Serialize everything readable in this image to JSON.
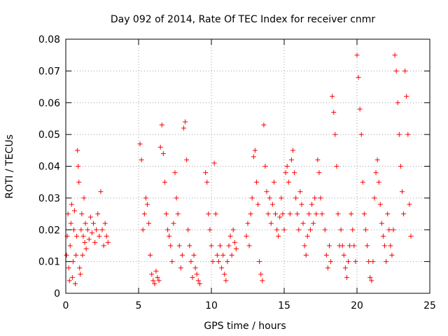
{
  "chart_data": {
    "type": "scatter",
    "title": "Day 092 of 2014, Rate Of TEC Index for receiver cnmr",
    "xlabel": "GPS time / hours",
    "ylabel": "ROTI / TECUs",
    "xlim": [
      0,
      25
    ],
    "ylim": [
      0,
      0.08
    ],
    "xticks": [
      0,
      5,
      10,
      15,
      20,
      25
    ],
    "yticks": [
      0,
      0.01,
      0.02,
      0.03,
      0.04,
      0.05,
      0.06,
      0.07,
      0.08
    ],
    "xtick_labels": [
      "0",
      "5",
      "10",
      "15",
      "20",
      "25"
    ],
    "ytick_labels": [
      "0",
      "0.01",
      "0.02",
      "0.03",
      "0.04",
      "0.05",
      "0.06",
      "0.07",
      "0.08"
    ],
    "grid": true,
    "marker": "+",
    "color": "#ff0000",
    "series": [
      {
        "name": "ROTI",
        "points": [
          [
            0.05,
            0.012
          ],
          [
            0.1,
            0.018
          ],
          [
            0.15,
            0.025
          ],
          [
            0.2,
            0.008
          ],
          [
            0.25,
            0.004
          ],
          [
            0.3,
            0.015
          ],
          [
            0.35,
            0.022
          ],
          [
            0.4,
            0.028
          ],
          [
            0.45,
            0.005
          ],
          [
            0.5,
            0.01
          ],
          [
            0.55,
            0.02
          ],
          [
            0.6,
            0.026
          ],
          [
            0.65,
            0.003
          ],
          [
            0.7,
            0.012
          ],
          [
            0.75,
            0.018
          ],
          [
            0.8,
            0.045
          ],
          [
            0.85,
            0.04
          ],
          [
            0.9,
            0.035
          ],
          [
            0.95,
            0.008
          ],
          [
            1.0,
            0.006
          ],
          [
            1.05,
            0.02
          ],
          [
            1.1,
            0.025
          ],
          [
            1.15,
            0.012
          ],
          [
            1.2,
            0.018
          ],
          [
            1.25,
            0.03
          ],
          [
            1.3,
            0.016
          ],
          [
            1.35,
            0.022
          ],
          [
            1.4,
            0.014
          ],
          [
            1.5,
            0.02
          ],
          [
            1.6,
            0.017
          ],
          [
            1.7,
            0.024
          ],
          [
            1.8,
            0.019
          ],
          [
            1.9,
            0.022
          ],
          [
            2.0,
            0.016
          ],
          [
            2.1,
            0.02
          ],
          [
            2.2,
            0.025
          ],
          [
            2.3,
            0.018
          ],
          [
            2.4,
            0.032
          ],
          [
            2.5,
            0.02
          ],
          [
            2.6,
            0.015
          ],
          [
            2.7,
            0.022
          ],
          [
            2.8,
            0.018
          ],
          [
            2.9,
            0.016
          ],
          [
            5.1,
            0.047
          ],
          [
            5.2,
            0.042
          ],
          [
            5.3,
            0.02
          ],
          [
            5.4,
            0.025
          ],
          [
            5.5,
            0.03
          ],
          [
            5.6,
            0.028
          ],
          [
            5.7,
            0.022
          ],
          [
            5.8,
            0.012
          ],
          [
            5.9,
            0.006
          ],
          [
            6.0,
            0.004
          ],
          [
            6.1,
            0.003
          ],
          [
            6.2,
            0.007
          ],
          [
            6.3,
            0.005
          ],
          [
            6.4,
            0.004
          ],
          [
            6.5,
            0.046
          ],
          [
            6.6,
            0.053
          ],
          [
            6.7,
            0.044
          ],
          [
            6.8,
            0.035
          ],
          [
            6.9,
            0.025
          ],
          [
            7.0,
            0.02
          ],
          [
            7.1,
            0.018
          ],
          [
            7.2,
            0.015
          ],
          [
            7.3,
            0.01
          ],
          [
            7.4,
            0.022
          ],
          [
            7.5,
            0.038
          ],
          [
            7.6,
            0.03
          ],
          [
            7.7,
            0.025
          ],
          [
            7.8,
            0.015
          ],
          [
            7.9,
            0.008
          ],
          [
            8.0,
            0.012
          ],
          [
            8.1,
            0.052
          ],
          [
            8.2,
            0.054
          ],
          [
            8.3,
            0.042
          ],
          [
            8.4,
            0.02
          ],
          [
            8.5,
            0.015
          ],
          [
            8.6,
            0.01
          ],
          [
            8.7,
            0.005
          ],
          [
            8.8,
            0.012
          ],
          [
            8.9,
            0.008
          ],
          [
            9.0,
            0.006
          ],
          [
            9.1,
            0.004
          ],
          [
            9.2,
            0.003
          ],
          [
            9.6,
            0.038
          ],
          [
            9.7,
            0.035
          ],
          [
            9.8,
            0.025
          ],
          [
            9.9,
            0.02
          ],
          [
            10.0,
            0.015
          ],
          [
            10.1,
            0.01
          ],
          [
            10.2,
            0.041
          ],
          [
            10.3,
            0.025
          ],
          [
            10.4,
            0.012
          ],
          [
            10.5,
            0.01
          ],
          [
            10.6,
            0.015
          ],
          [
            10.7,
            0.008
          ],
          [
            10.8,
            0.012
          ],
          [
            10.9,
            0.006
          ],
          [
            11.0,
            0.004
          ],
          [
            11.1,
            0.01
          ],
          [
            11.2,
            0.015
          ],
          [
            11.3,
            0.018
          ],
          [
            11.4,
            0.012
          ],
          [
            11.5,
            0.02
          ],
          [
            11.6,
            0.016
          ],
          [
            11.7,
            0.014
          ],
          [
            12.4,
            0.018
          ],
          [
            12.5,
            0.022
          ],
          [
            12.6,
            0.015
          ],
          [
            12.7,
            0.025
          ],
          [
            12.8,
            0.03
          ],
          [
            12.9,
            0.043
          ],
          [
            13.0,
            0.045
          ],
          [
            13.1,
            0.035
          ],
          [
            13.2,
            0.028
          ],
          [
            13.3,
            0.01
          ],
          [
            13.4,
            0.006
          ],
          [
            13.5,
            0.004
          ],
          [
            13.6,
            0.053
          ],
          [
            13.7,
            0.04
          ],
          [
            13.8,
            0.032
          ],
          [
            13.9,
            0.025
          ],
          [
            14.0,
            0.03
          ],
          [
            14.1,
            0.022
          ],
          [
            14.2,
            0.028
          ],
          [
            14.3,
            0.035
          ],
          [
            14.4,
            0.025
          ],
          [
            14.5,
            0.02
          ],
          [
            14.6,
            0.018
          ],
          [
            14.7,
            0.024
          ],
          [
            14.8,
            0.03
          ],
          [
            14.9,
            0.025
          ],
          [
            15.0,
            0.02
          ],
          [
            15.1,
            0.038
          ],
          [
            15.2,
            0.04
          ],
          [
            15.3,
            0.035
          ],
          [
            15.4,
            0.025
          ],
          [
            15.5,
            0.042
          ],
          [
            15.6,
            0.045
          ],
          [
            15.7,
            0.038
          ],
          [
            15.8,
            0.03
          ],
          [
            15.9,
            0.025
          ],
          [
            16.0,
            0.02
          ],
          [
            16.1,
            0.032
          ],
          [
            16.2,
            0.028
          ],
          [
            16.3,
            0.022
          ],
          [
            16.4,
            0.015
          ],
          [
            16.5,
            0.012
          ],
          [
            16.6,
            0.018
          ],
          [
            16.7,
            0.025
          ],
          [
            16.8,
            0.02
          ],
          [
            16.9,
            0.028
          ],
          [
            17.0,
            0.022
          ],
          [
            17.1,
            0.03
          ],
          [
            17.2,
            0.025
          ],
          [
            17.3,
            0.042
          ],
          [
            17.4,
            0.038
          ],
          [
            17.5,
            0.03
          ],
          [
            17.6,
            0.025
          ],
          [
            17.8,
            0.02
          ],
          [
            17.9,
            0.012
          ],
          [
            18.0,
            0.008
          ],
          [
            18.1,
            0.015
          ],
          [
            18.2,
            0.01
          ],
          [
            18.3,
            0.062
          ],
          [
            18.4,
            0.057
          ],
          [
            18.5,
            0.05
          ],
          [
            18.6,
            0.04
          ],
          [
            18.7,
            0.025
          ],
          [
            18.8,
            0.015
          ],
          [
            18.9,
            0.02
          ],
          [
            19.0,
            0.015
          ],
          [
            19.1,
            0.012
          ],
          [
            19.2,
            0.008
          ],
          [
            19.3,
            0.005
          ],
          [
            19.4,
            0.01
          ],
          [
            19.5,
            0.015
          ],
          [
            19.6,
            0.025
          ],
          [
            19.7,
            0.02
          ],
          [
            19.8,
            0.015
          ],
          [
            19.9,
            0.01
          ],
          [
            20.0,
            0.075
          ],
          [
            20.1,
            0.068
          ],
          [
            20.2,
            0.058
          ],
          [
            20.3,
            0.05
          ],
          [
            20.4,
            0.035
          ],
          [
            20.5,
            0.025
          ],
          [
            20.6,
            0.02
          ],
          [
            20.7,
            0.015
          ],
          [
            20.8,
            0.01
          ],
          [
            20.9,
            0.005
          ],
          [
            21.0,
            0.004
          ],
          [
            21.1,
            0.01
          ],
          [
            21.2,
            0.03
          ],
          [
            21.3,
            0.038
          ],
          [
            21.4,
            0.042
          ],
          [
            21.5,
            0.035
          ],
          [
            21.6,
            0.028
          ],
          [
            21.7,
            0.022
          ],
          [
            21.8,
            0.018
          ],
          [
            21.9,
            0.015
          ],
          [
            22.0,
            0.01
          ],
          [
            22.1,
            0.025
          ],
          [
            22.2,
            0.02
          ],
          [
            22.3,
            0.015
          ],
          [
            22.4,
            0.012
          ],
          [
            22.5,
            0.02
          ],
          [
            22.6,
            0.075
          ],
          [
            22.7,
            0.07
          ],
          [
            22.8,
            0.06
          ],
          [
            22.9,
            0.05
          ],
          [
            23.0,
            0.04
          ],
          [
            23.1,
            0.032
          ],
          [
            23.2,
            0.025
          ],
          [
            23.3,
            0.07
          ],
          [
            23.4,
            0.062
          ],
          [
            23.5,
            0.05
          ],
          [
            23.6,
            0.028
          ],
          [
            23.7,
            0.018
          ]
        ]
      }
    ]
  }
}
